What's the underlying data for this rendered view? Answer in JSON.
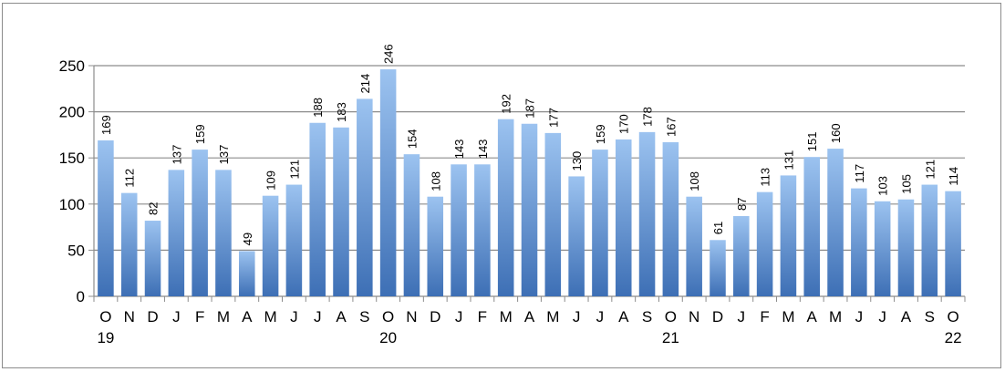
{
  "chart_data": {
    "type": "bar",
    "categories": [
      "O",
      "N",
      "D",
      "J",
      "F",
      "M",
      "A",
      "M",
      "J",
      "J",
      "A",
      "S",
      "O",
      "N",
      "D",
      "J",
      "F",
      "M",
      "A",
      "M",
      "J",
      "J",
      "A",
      "S",
      "O",
      "N",
      "D",
      "J",
      "F",
      "M",
      "A",
      "M",
      "J",
      "J",
      "A",
      "S",
      "O"
    ],
    "year_labels": [
      {
        "index": 0,
        "label": "19"
      },
      {
        "index": 12,
        "label": "20"
      },
      {
        "index": 24,
        "label": "21"
      },
      {
        "index": 36,
        "label": "22"
      }
    ],
    "values": [
      169,
      112,
      82,
      137,
      159,
      137,
      49,
      109,
      121,
      188,
      183,
      214,
      246,
      154,
      108,
      143,
      143,
      192,
      187,
      177,
      130,
      159,
      170,
      178,
      167,
      108,
      61,
      87,
      113,
      131,
      151,
      160,
      117,
      103,
      105,
      121,
      114
    ],
    "data_labels": [
      "169",
      "112",
      "82",
      "137",
      "159",
      "137",
      "49",
      "109",
      "121",
      "188",
      "183",
      "214",
      "246",
      "154",
      "108",
      "143",
      "143",
      "192",
      "187",
      "177",
      "130",
      "159",
      "170",
      "178",
      "167",
      "108",
      "61",
      "87",
      "113",
      "131",
      "151",
      "160",
      "117",
      "103",
      "105",
      "121",
      "114"
    ],
    "ylim": [
      0,
      250
    ],
    "yticks": [
      "0",
      "50",
      "100",
      "150",
      "200",
      "250"
    ],
    "grid": true,
    "legend": "none",
    "bar_color_top": "#9cc3f0",
    "bar_color_bottom": "#3d6fb5",
    "grid_color": "#8c8c8c"
  }
}
